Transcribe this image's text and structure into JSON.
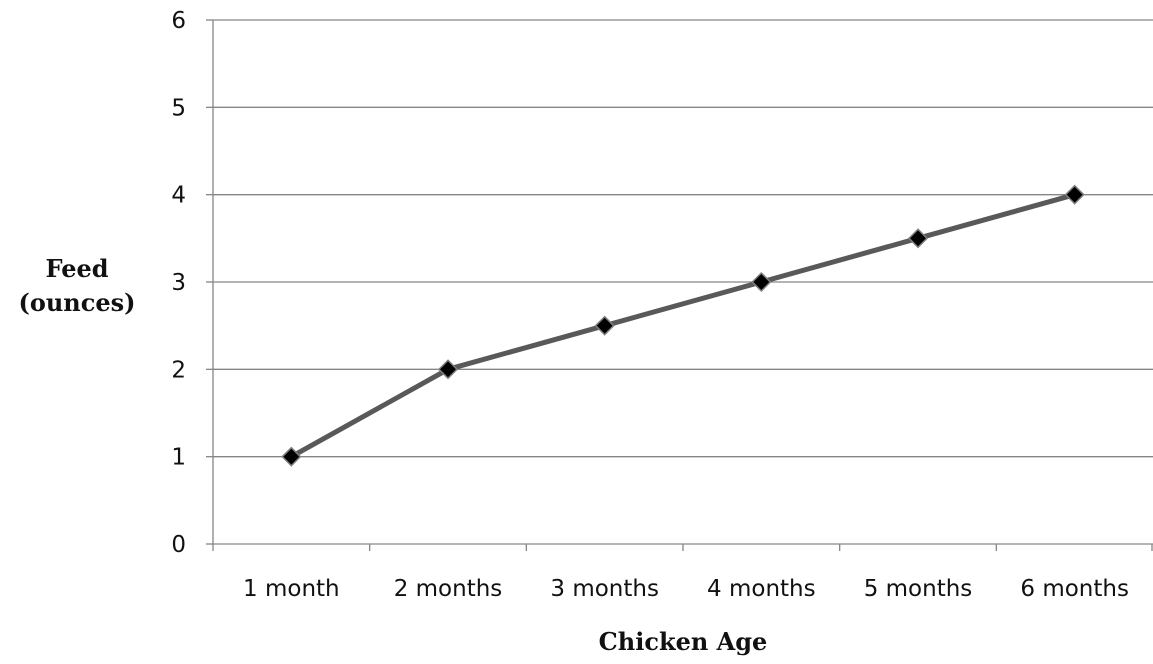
{
  "chart_data": {
    "type": "line",
    "categories": [
      "1 month",
      "2 months",
      "3 months",
      "4 months",
      "5 months",
      "6 months"
    ],
    "series": [
      {
        "values": [
          1,
          2,
          2.5,
          3,
          3.5,
          4
        ]
      }
    ],
    "title": "",
    "xlabel": "Chicken Age",
    "ylabel_lines": [
      "Feed",
      "(ounces)"
    ],
    "ylim": [
      0,
      6
    ],
    "yticks": [
      "0",
      "1",
      "2",
      "3",
      "4",
      "5",
      "6"
    ],
    "grid": true,
    "legend": "none",
    "colors": {
      "line": "#595959",
      "marker": "#000000",
      "grid": "#868686",
      "axis": "#868686"
    }
  }
}
